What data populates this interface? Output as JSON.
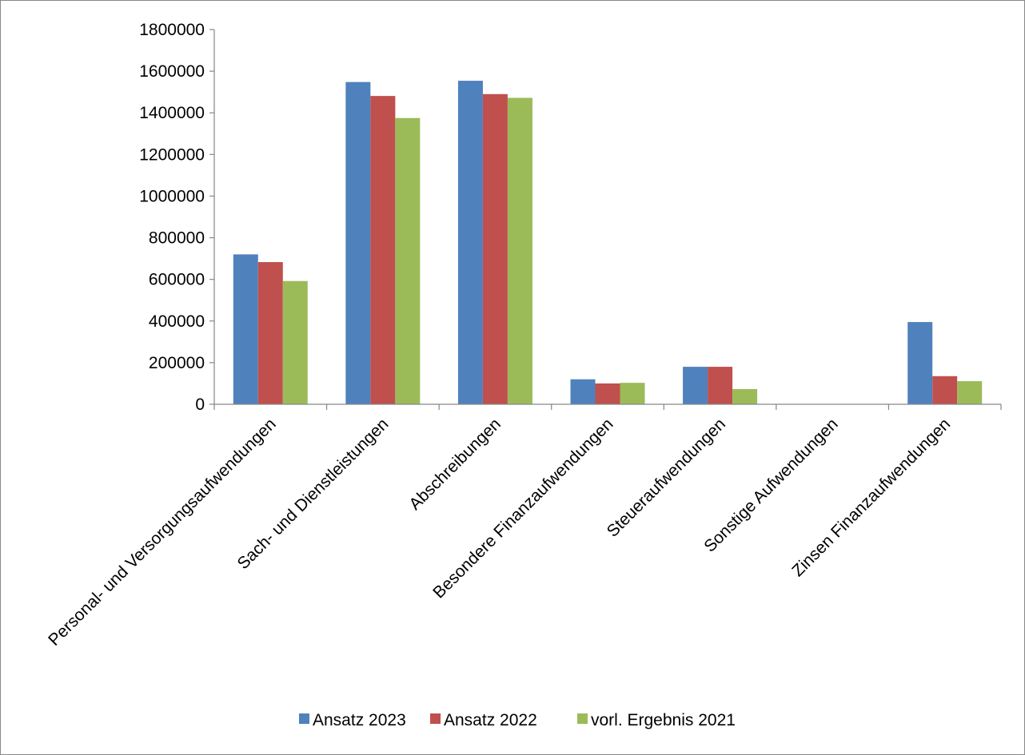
{
  "chart_data": {
    "type": "bar",
    "title": "",
    "xlabel": "",
    "ylabel": "",
    "categories": [
      "Personal- und Versorgungsaufwendungen",
      "Sach- und Dienstleistungen",
      "Abschreibungen",
      "Besondere Finanzaufwendungen",
      "Steueraufwendungen",
      "Sonstige Aufwendungen",
      "Zinsen Finanzaufwendungen"
    ],
    "series": [
      {
        "name": "Ansatz 2023",
        "color": "#4F81BD",
        "values": [
          720000,
          1548000,
          1554000,
          120000,
          180000,
          0,
          395000
        ]
      },
      {
        "name": "Ansatz 2022",
        "color": "#C0504D",
        "values": [
          683000,
          1481000,
          1490000,
          100000,
          180000,
          0,
          135000
        ]
      },
      {
        "name": "vorl. Ergebnis 2021",
        "color": "#9BBB59",
        "values": [
          592000,
          1375000,
          1472000,
          103000,
          73000,
          0,
          111000
        ]
      }
    ],
    "ylim": [
      0,
      1800000
    ],
    "ytick_step": 200000,
    "yticks": [
      "0",
      "200000",
      "400000",
      "600000",
      "800000",
      "1000000",
      "1200000",
      "1400000",
      "1600000",
      "1800000"
    ],
    "grid": false,
    "legend_position": "bottom",
    "border_color": "#888888"
  }
}
